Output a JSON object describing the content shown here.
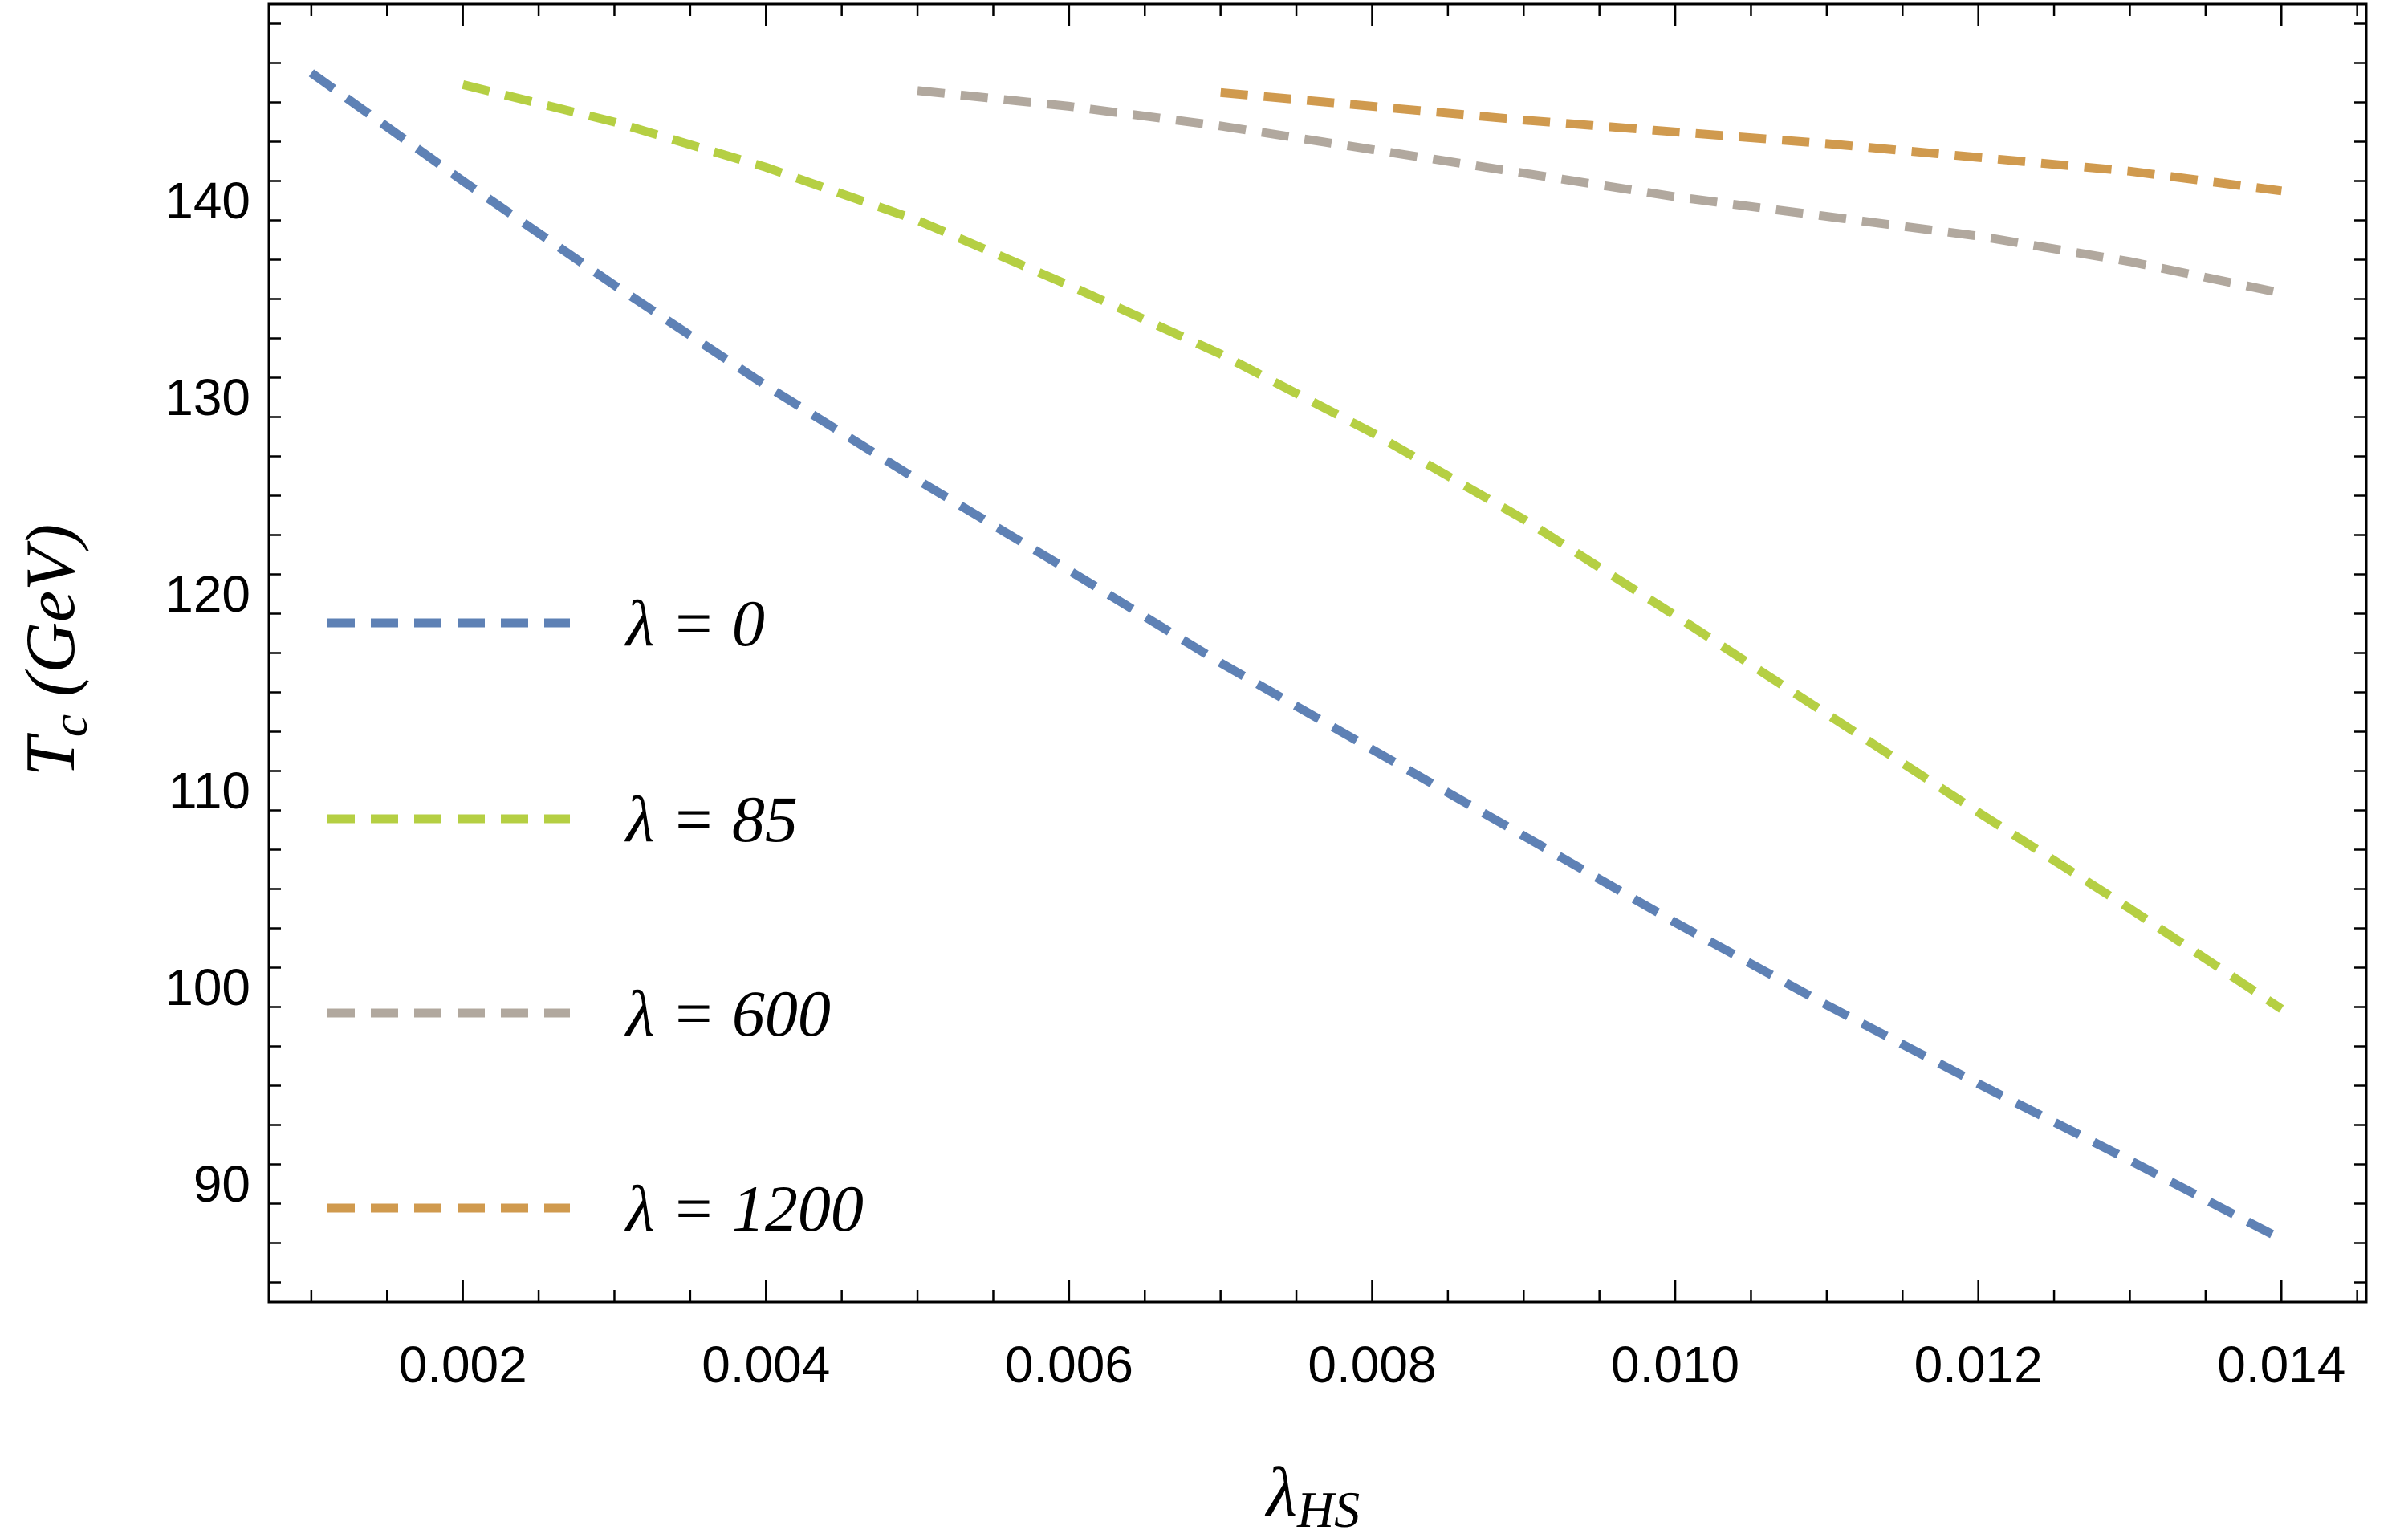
{
  "chart_data": {
    "type": "line",
    "title": "",
    "xlabel": {
      "main": "λ",
      "sub": "HS"
    },
    "ylabel": {
      "main": "T",
      "sub": "c",
      "rest": " (GeV)"
    },
    "xlim": [
      0.00072,
      0.01456
    ],
    "ylim": [
      84,
      150
    ],
    "x_ticks": [
      0.002,
      0.004,
      0.006,
      0.008,
      0.01,
      0.012,
      0.014
    ],
    "x_tick_labels": [
      "0.002",
      "0.004",
      "0.006",
      "0.008",
      "0.010",
      "0.012",
      "0.014"
    ],
    "y_ticks": [
      90,
      100,
      110,
      120,
      130,
      140
    ],
    "y_tick_labels": [
      "90",
      "100",
      "110",
      "120",
      "130",
      "140"
    ],
    "grid": false,
    "line_style": "dashed",
    "legend_position": "left",
    "series": [
      {
        "name": "λ = 0",
        "color": "#5e81b5",
        "x": [
          0.001,
          0.002,
          0.003,
          0.004,
          0.005,
          0.006,
          0.007,
          0.008,
          0.009,
          0.01,
          0.011,
          0.012,
          0.013,
          0.014
        ],
        "y": [
          146.5,
          141.0,
          135.7,
          130.6,
          125.8,
          121.2,
          116.5,
          112.1,
          107.7,
          103.3,
          99.1,
          95.1,
          91.2,
          87.2
        ]
      },
      {
        "name": "λ = 85",
        "color": "#b5cf43",
        "x": [
          0.002,
          0.003,
          0.004,
          0.005,
          0.006,
          0.007,
          0.008,
          0.009,
          0.01,
          0.011,
          0.012,
          0.013,
          0.014
        ],
        "y": [
          145.9,
          144.0,
          141.7,
          139.0,
          135.7,
          132.2,
          128.2,
          123.8,
          118.9,
          113.9,
          108.9,
          104.0,
          98.9
        ]
      },
      {
        "name": "λ = 600",
        "color": "#b1a89e",
        "x": [
          0.005,
          0.006,
          0.007,
          0.008,
          0.009,
          0.01,
          0.011,
          0.012,
          0.013,
          0.014
        ],
        "y": [
          145.6,
          144.8,
          143.8,
          142.6,
          141.4,
          140.2,
          139.2,
          138.2,
          136.9,
          135.3
        ]
      },
      {
        "name": "λ = 1200",
        "color": "#d09a4e",
        "x": [
          0.007,
          0.008,
          0.009,
          0.01,
          0.011,
          0.012,
          0.013,
          0.014
        ],
        "y": [
          145.5,
          144.8,
          144.1,
          143.5,
          142.9,
          142.2,
          141.5,
          140.5
        ]
      }
    ]
  }
}
